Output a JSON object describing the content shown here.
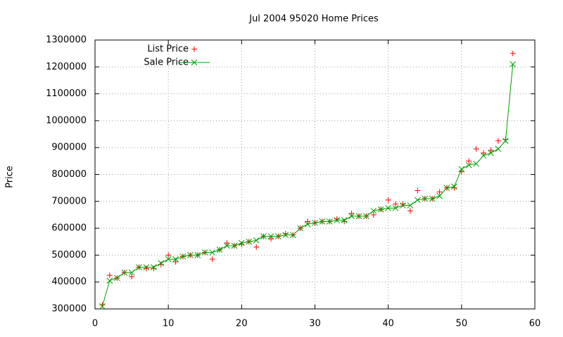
{
  "chart_data": {
    "type": "line",
    "title": "Jul 2004 95020 Home Prices",
    "y_label": "Price",
    "x": [
      1,
      2,
      3,
      4,
      5,
      6,
      7,
      8,
      9,
      10,
      11,
      12,
      13,
      14,
      15,
      16,
      17,
      18,
      19,
      20,
      21,
      22,
      23,
      24,
      25,
      26,
      27,
      28,
      29,
      30,
      31,
      32,
      33,
      34,
      35,
      36,
      37,
      38,
      39,
      40,
      41,
      42,
      43,
      44,
      45,
      46,
      47,
      48,
      49,
      50,
      51,
      52,
      53,
      54,
      55,
      56,
      57
    ],
    "series": [
      {
        "name": "List Price",
        "color": "#ff0000",
        "style": "points",
        "marker": "plus",
        "values": [
          315000,
          425000,
          415000,
          435000,
          420000,
          455000,
          450000,
          450000,
          465000,
          500000,
          475000,
          495000,
          500000,
          500000,
          510000,
          485000,
          520000,
          545000,
          535000,
          540000,
          550000,
          530000,
          570000,
          560000,
          570000,
          580000,
          575000,
          600000,
          625000,
          620000,
          625000,
          625000,
          635000,
          625000,
          655000,
          645000,
          645000,
          650000,
          670000,
          705000,
          690000,
          690000,
          665000,
          740000,
          710000,
          710000,
          735000,
          750000,
          750000,
          810000,
          850000,
          895000,
          880000,
          890000,
          925000,
          930000,
          1250000
        ]
      },
      {
        "name": "Sale Price",
        "color": "#00a000",
        "style": "linespoints",
        "marker": "cross",
        "values": [
          310000,
          405000,
          415000,
          435000,
          435000,
          455000,
          455000,
          455000,
          470000,
          485000,
          485000,
          495000,
          500000,
          500000,
          510000,
          510000,
          520000,
          535000,
          535000,
          545000,
          550000,
          555000,
          570000,
          570000,
          570000,
          575000,
          575000,
          600000,
          615000,
          620000,
          625000,
          625000,
          630000,
          630000,
          645000,
          645000,
          645000,
          665000,
          670000,
          675000,
          675000,
          685000,
          685000,
          705000,
          710000,
          710000,
          720000,
          750000,
          755000,
          820000,
          835000,
          840000,
          870000,
          880000,
          895000,
          925000,
          1210000
        ]
      }
    ],
    "xlim": [
      0,
      60
    ],
    "xticks": [
      0,
      10,
      20,
      30,
      40,
      50,
      60
    ],
    "ylim": [
      300000,
      1300000
    ],
    "yticks": [
      300000,
      400000,
      500000,
      600000,
      700000,
      800000,
      900000,
      1000000,
      1100000,
      1200000,
      1300000
    ],
    "grid": true,
    "legend": "top-left"
  }
}
